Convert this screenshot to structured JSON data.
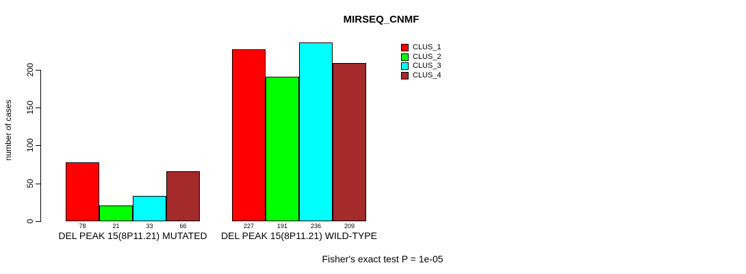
{
  "title": "MIRSEQ_CNMF",
  "y_axis": {
    "label": "number of cases",
    "ticks": [
      "0",
      "50",
      "100",
      "150",
      "200"
    ]
  },
  "legend": {
    "items": [
      {
        "label": "CLUS_1",
        "color": "#FF0000"
      },
      {
        "label": "CLUS_2",
        "color": "#00FF00"
      },
      {
        "label": "CLUS_3",
        "color": "#00FFFF"
      },
      {
        "label": "CLUS_4",
        "color": "#A52A2A"
      }
    ]
  },
  "footer": "Fisher's exact test P = 1e-05",
  "chart_data": {
    "type": "bar",
    "title": "MIRSEQ_CNMF",
    "ylabel": "number of cases",
    "ylim": [
      0,
      240
    ],
    "yticks": [
      0,
      50,
      100,
      150,
      200
    ],
    "grid": false,
    "legend_position": "top-right",
    "categories": [
      "DEL PEAK 15(8P11.21) MUTATED",
      "DEL PEAK 15(8P11.21) WILD-TYPE"
    ],
    "series": [
      {
        "name": "CLUS_1",
        "color": "#FF0000",
        "values": [
          78,
          227
        ]
      },
      {
        "name": "CLUS_2",
        "color": "#00FF00",
        "values": [
          21,
          191
        ]
      },
      {
        "name": "CLUS_3",
        "color": "#00FFFF",
        "values": [
          33,
          236
        ]
      },
      {
        "name": "CLUS_4",
        "color": "#A52A2A",
        "values": [
          66,
          209
        ]
      }
    ],
    "bar_value_labels": [
      [
        78,
        21,
        33,
        66
      ],
      [
        227,
        191,
        236,
        209
      ]
    ],
    "annotation": "Fisher's exact test P = 1e-05"
  }
}
